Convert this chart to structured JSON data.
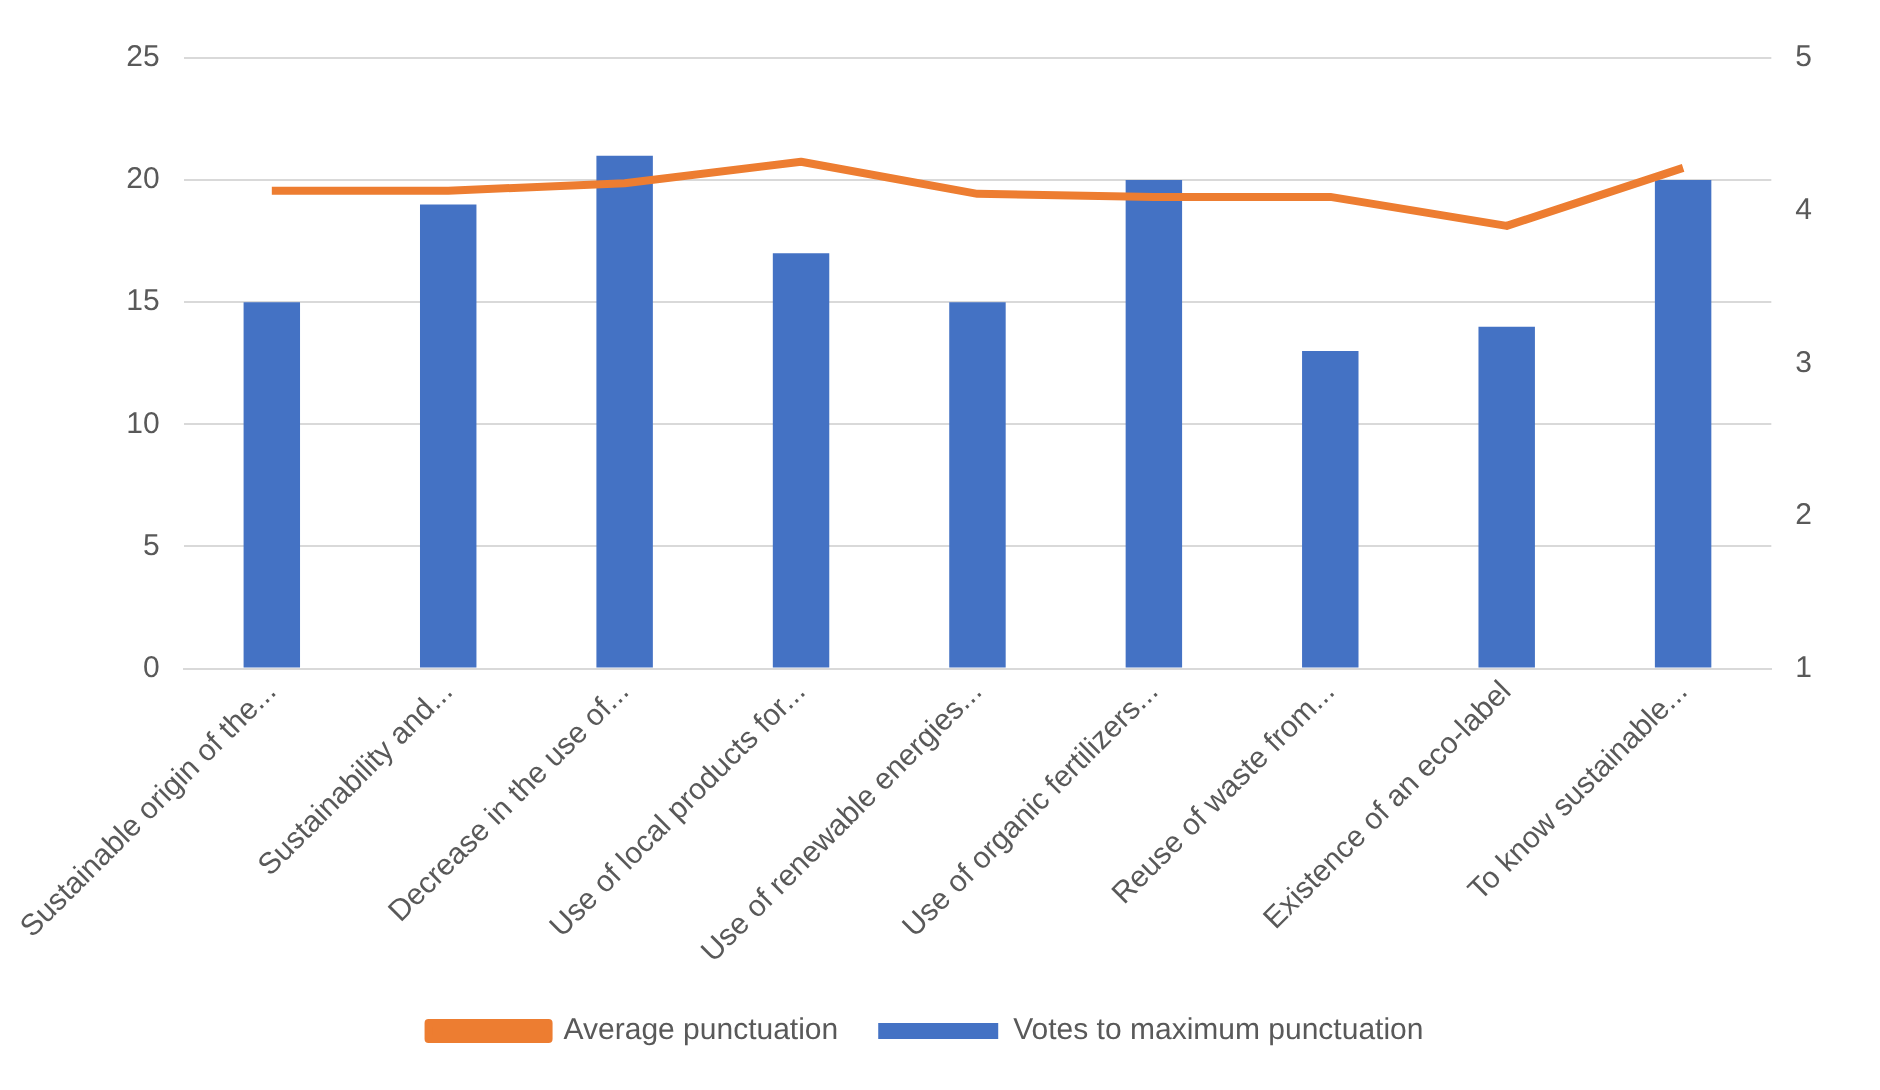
{
  "chart_data": {
    "type": "bar",
    "categories": [
      "Sustainable origin of the...",
      "Sustainability and...",
      "Decrease in the use of...",
      "Use of local products for...",
      "Use of renewable energies...",
      "Use of organic fertilizers...",
      "Reuse of waste from...",
      "Existence of an eco-label",
      "To know sustainable..."
    ],
    "series": [
      {
        "name": "Votes to maximum punctuation",
        "color": "#4472c4",
        "values": [
          15,
          19,
          21,
          17,
          15,
          20,
          13,
          14,
          20
        ]
      },
      {
        "name": "Average punctuation",
        "type": "line",
        "axis": "y2",
        "color": "#ed7d31",
        "values": [
          4.13,
          4.13,
          4.18,
          4.32,
          4.11,
          4.09,
          4.09,
          3.9,
          4.28
        ]
      }
    ],
    "ylim": [
      0,
      25
    ],
    "yticks": [
      0,
      5,
      10,
      15,
      20,
      25
    ],
    "y2lim": [
      1,
      5
    ],
    "y2ticks": [
      1,
      2,
      3,
      4,
      5
    ],
    "grid": "y",
    "legend": "bottom",
    "marker": "none"
  }
}
